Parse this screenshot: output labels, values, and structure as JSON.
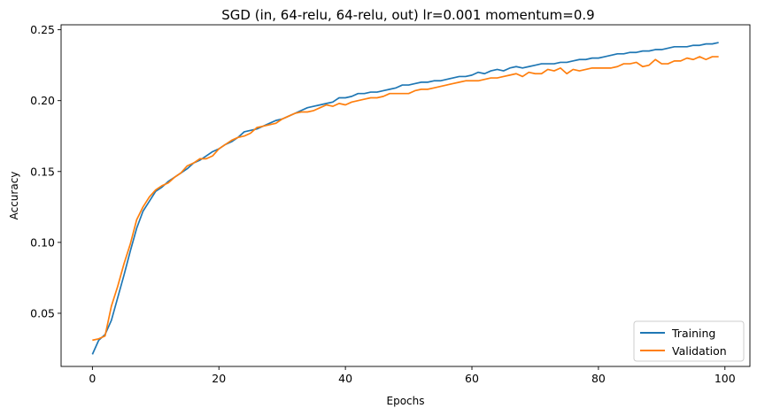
{
  "chart_data": {
    "type": "line",
    "title": "SGD (in, 64-relu, 64-relu, out) lr=0.001 momentum=0.9",
    "xlabel": "Epochs",
    "ylabel": "Accuracy",
    "xlim": [
      -4.95,
      103.95
    ],
    "ylim": [
      0.0125,
      0.2535
    ],
    "xticks": [
      0,
      20,
      40,
      60,
      80,
      100
    ],
    "xtick_labels": [
      "0",
      "20",
      "40",
      "60",
      "80",
      "100"
    ],
    "yticks": [
      0.05,
      0.1,
      0.15,
      0.2,
      0.25
    ],
    "ytick_labels": [
      "0.05",
      "0.10",
      "0.15",
      "0.20",
      "0.25"
    ],
    "grid": false,
    "legend_position": "lower-right",
    "x": [
      0,
      1,
      2,
      3,
      4,
      5,
      6,
      7,
      8,
      9,
      10,
      11,
      12,
      13,
      14,
      15,
      16,
      17,
      18,
      19,
      20,
      21,
      22,
      23,
      24,
      25,
      26,
      27,
      28,
      29,
      30,
      31,
      32,
      33,
      34,
      35,
      36,
      37,
      38,
      39,
      40,
      41,
      42,
      43,
      44,
      45,
      46,
      47,
      48,
      49,
      50,
      51,
      52,
      53,
      54,
      55,
      56,
      57,
      58,
      59,
      60,
      61,
      62,
      63,
      64,
      65,
      66,
      67,
      68,
      69,
      70,
      71,
      72,
      73,
      74,
      75,
      76,
      77,
      78,
      79,
      80,
      81,
      82,
      83,
      84,
      85,
      86,
      87,
      88,
      89,
      90,
      91,
      92,
      93,
      94,
      95,
      96,
      97,
      98,
      99
    ],
    "series": [
      {
        "name": "Training",
        "color": "#1f77b4",
        "values": [
          0.021,
          0.031,
          0.035,
          0.045,
          0.061,
          0.077,
          0.094,
          0.11,
          0.122,
          0.129,
          0.136,
          0.139,
          0.143,
          0.146,
          0.149,
          0.152,
          0.156,
          0.158,
          0.161,
          0.164,
          0.166,
          0.169,
          0.171,
          0.174,
          0.178,
          0.179,
          0.18,
          0.182,
          0.184,
          0.186,
          0.187,
          0.189,
          0.191,
          0.193,
          0.195,
          0.196,
          0.197,
          0.198,
          0.199,
          0.202,
          0.202,
          0.203,
          0.205,
          0.205,
          0.206,
          0.206,
          0.207,
          0.208,
          0.209,
          0.211,
          0.211,
          0.212,
          0.213,
          0.213,
          0.214,
          0.214,
          0.215,
          0.216,
          0.217,
          0.217,
          0.218,
          0.22,
          0.219,
          0.221,
          0.222,
          0.221,
          0.223,
          0.224,
          0.223,
          0.224,
          0.225,
          0.226,
          0.226,
          0.226,
          0.227,
          0.227,
          0.228,
          0.229,
          0.229,
          0.23,
          0.23,
          0.231,
          0.232,
          0.233,
          0.233,
          0.234,
          0.234,
          0.235,
          0.235,
          0.236,
          0.236,
          0.237,
          0.238,
          0.238,
          0.238,
          0.239,
          0.239,
          0.24,
          0.24,
          0.241
        ]
      },
      {
        "name": "Validation",
        "color": "#ff7f0e",
        "values": [
          0.031,
          0.032,
          0.034,
          0.055,
          0.069,
          0.085,
          0.099,
          0.116,
          0.125,
          0.132,
          0.137,
          0.14,
          0.142,
          0.146,
          0.149,
          0.154,
          0.156,
          0.159,
          0.159,
          0.161,
          0.166,
          0.169,
          0.172,
          0.174,
          0.175,
          0.177,
          0.181,
          0.182,
          0.183,
          0.184,
          0.187,
          0.189,
          0.191,
          0.192,
          0.192,
          0.193,
          0.195,
          0.197,
          0.196,
          0.198,
          0.197,
          0.199,
          0.2,
          0.201,
          0.202,
          0.202,
          0.203,
          0.205,
          0.205,
          0.205,
          0.205,
          0.207,
          0.208,
          0.208,
          0.209,
          0.21,
          0.211,
          0.212,
          0.213,
          0.214,
          0.214,
          0.214,
          0.215,
          0.216,
          0.216,
          0.217,
          0.218,
          0.219,
          0.217,
          0.22,
          0.219,
          0.219,
          0.222,
          0.221,
          0.223,
          0.219,
          0.222,
          0.221,
          0.222,
          0.223,
          0.223,
          0.223,
          0.223,
          0.224,
          0.226,
          0.226,
          0.227,
          0.224,
          0.225,
          0.229,
          0.226,
          0.226,
          0.228,
          0.228,
          0.23,
          0.229,
          0.231,
          0.229,
          0.231,
          0.231
        ]
      }
    ]
  }
}
